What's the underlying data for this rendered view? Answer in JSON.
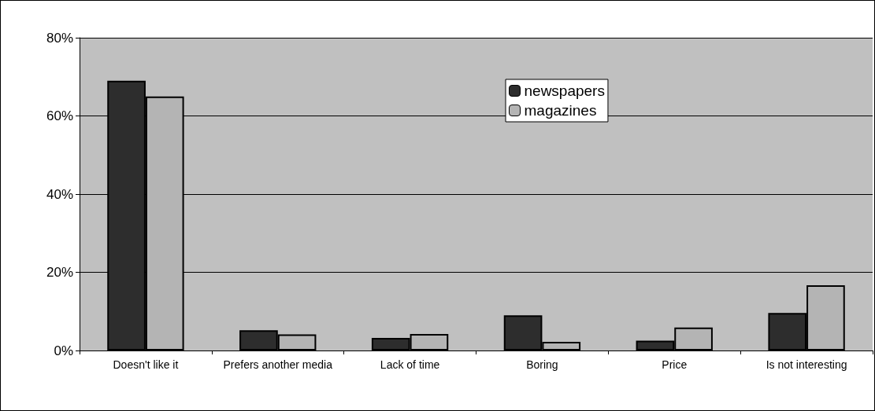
{
  "chart_data": {
    "type": "bar",
    "categories": [
      "Doesn't like it",
      "Prefers another media",
      "Lack of time",
      "Boring",
      "Price",
      "Is not interesting"
    ],
    "series": [
      {
        "name": "newspapers",
        "color": "#2d2d2d",
        "values": [
          69,
          5.2,
          3.2,
          9,
          2.5,
          9.6
        ]
      },
      {
        "name": "magazines",
        "color": "#b4b4b4",
        "values": [
          65,
          4.1,
          4.2,
          2.2,
          5.9,
          16.7
        ]
      }
    ],
    "ylim": [
      0,
      80
    ],
    "yticks": [
      {
        "value": 0,
        "label": "0%"
      },
      {
        "value": 20,
        "label": "20%"
      },
      {
        "value": 40,
        "label": "40%"
      },
      {
        "value": 60,
        "label": "60%"
      },
      {
        "value": 80,
        "label": "80%"
      }
    ],
    "grid": "y",
    "legend": "top right"
  }
}
